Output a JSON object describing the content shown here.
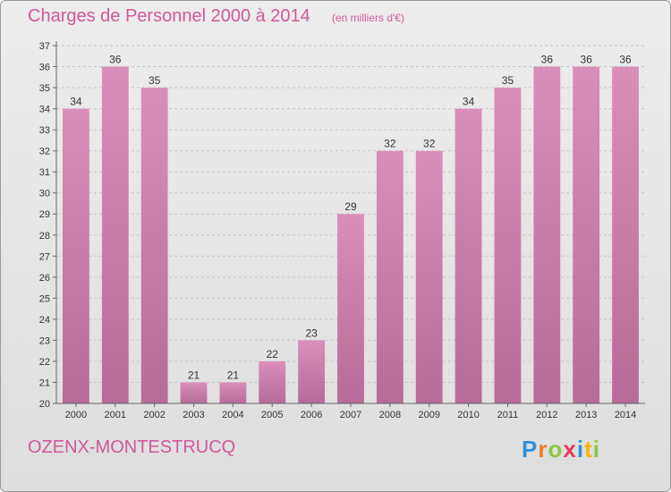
{
  "header": {
    "title": "Charges de Personnel 2000 à 2014",
    "unit": "(en milliers d'€)"
  },
  "footer": {
    "commune": "OZENX-MONTESTRUCQ",
    "logo": {
      "letters": [
        "P",
        "r",
        "o",
        "x",
        "i",
        "t",
        "i"
      ],
      "colors": [
        "#2f8fd8",
        "#f07d1e",
        "#8cc63f",
        "#e8385e",
        "#2f8fd8",
        "#f7b500",
        "#8cc63f"
      ]
    }
  },
  "chart_data": {
    "type": "bar",
    "categories": [
      "2000",
      "2001",
      "2002",
      "2003",
      "2004",
      "2005",
      "2006",
      "2007",
      "2008",
      "2009",
      "2010",
      "2011",
      "2012",
      "2013",
      "2014"
    ],
    "values": [
      34,
      36,
      35,
      21,
      21,
      22,
      23,
      29,
      32,
      32,
      34,
      35,
      36,
      36,
      36
    ],
    "ylim": [
      20,
      37
    ],
    "yticks": [
      20,
      21,
      22,
      23,
      24,
      25,
      26,
      27,
      28,
      29,
      30,
      31,
      32,
      33,
      34,
      35,
      36,
      37
    ],
    "grid": true,
    "bar_color": "#d98fb8",
    "bar_color_dark": "#b76b98"
  }
}
